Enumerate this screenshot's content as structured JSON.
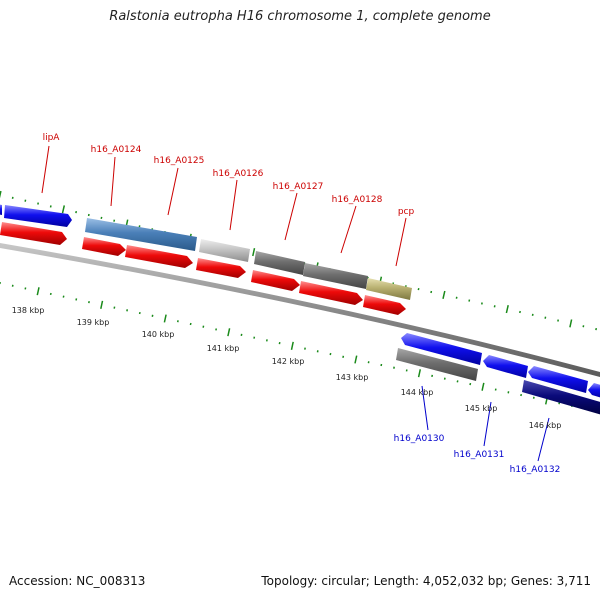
{
  "title": "Ralstonia eutropha H16 chromosome 1, complete genome",
  "footer": {
    "accession": "Accession: NC_008313",
    "stats": "Topology: circular; Length: 4,052,032 bp; Genes: 3,711"
  },
  "colors": {
    "backbone": "#8a8a8a",
    "tick": "#1a8a1a",
    "forward_label": "#cc0000",
    "reverse_label": "#0000cc",
    "blue": "#1010ee",
    "red": "#ee0a0a",
    "steel": "#4a7fb8",
    "light_gray": "#c4c4c4",
    "dark_gray": "#6e6e6e",
    "olive": "#b8b070",
    "navy": "#0a0a7a"
  },
  "scale_labels": [
    "138 kbp",
    "139 kbp",
    "140 kbp",
    "141 kbp",
    "142 kbp",
    "143 kbp",
    "144 kbp",
    "145 kbp",
    "146 kbp"
  ],
  "gene_labels": [
    {
      "text": "lipA",
      "strand": "forward"
    },
    {
      "text": "h16_A0124",
      "strand": "forward"
    },
    {
      "text": "h16_A0125",
      "strand": "forward"
    },
    {
      "text": "h16_A0126",
      "strand": "forward"
    },
    {
      "text": "h16_A0127",
      "strand": "forward"
    },
    {
      "text": "h16_A0128",
      "strand": "forward"
    },
    {
      "text": "pcp",
      "strand": "forward"
    },
    {
      "text": "h16_A0130",
      "strand": "reverse"
    },
    {
      "text": "h16_A0131",
      "strand": "reverse"
    },
    {
      "text": "h16_A0132",
      "strand": "reverse"
    }
  ]
}
